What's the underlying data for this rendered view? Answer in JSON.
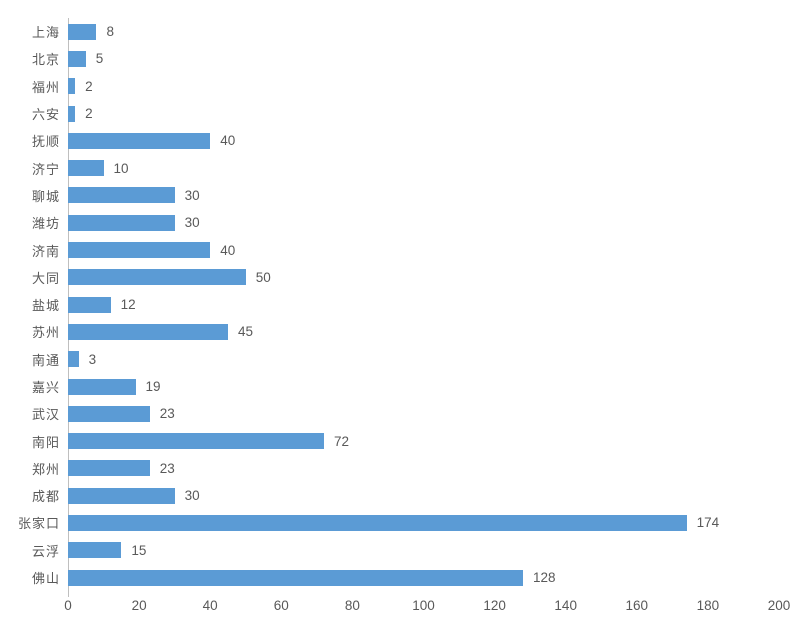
{
  "chart_data": {
    "type": "bar",
    "orientation": "horizontal",
    "title": "",
    "xlabel": "",
    "ylabel": "",
    "categories": [
      "上海",
      "北京",
      "福州",
      "六安",
      "抚顺",
      "济宁",
      "聊城",
      "潍坊",
      "济南",
      "大同",
      "盐城",
      "苏州",
      "南通",
      "嘉兴",
      "武汉",
      "南阳",
      "郑州",
      "成都",
      "张家口",
      "云浮",
      "佛山"
    ],
    "values": [
      8,
      5,
      2,
      2,
      40,
      10,
      30,
      30,
      40,
      50,
      12,
      45,
      3,
      19,
      23,
      72,
      23,
      30,
      174,
      15,
      128
    ],
    "data_labels": [
      8,
      5,
      2,
      2,
      40,
      10,
      30,
      30,
      40,
      50,
      12,
      45,
      3,
      19,
      23,
      72,
      23,
      30,
      174,
      15,
      128
    ],
    "xlim": [
      0,
      200
    ],
    "x_ticks": [
      0,
      20,
      40,
      60,
      80,
      100,
      120,
      140,
      160,
      180,
      200
    ],
    "grid": false,
    "legend": false,
    "colors": {
      "bar": "#5B9BD5",
      "text": "#595959",
      "axis_line": "#BFBFBF"
    }
  }
}
